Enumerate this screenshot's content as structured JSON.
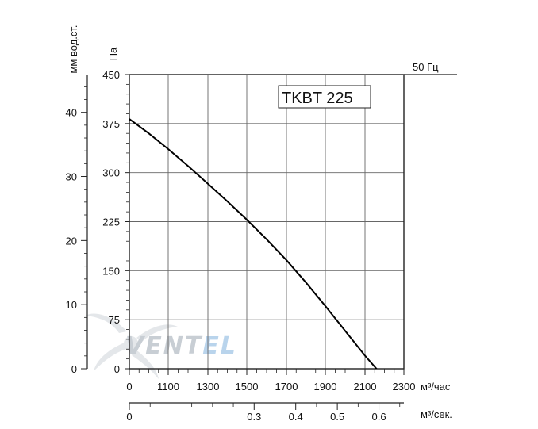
{
  "chart_data": {
    "type": "line",
    "model_label": "TKBT 225",
    "frequency_label": "50 Гц",
    "y_primary": {
      "label": "Па",
      "range": [
        0,
        450
      ],
      "ticks": [
        0,
        75,
        150,
        225,
        300,
        375,
        450
      ],
      "tick_labels": [
        "0",
        "75",
        "150",
        "225",
        "300",
        "375",
        "450"
      ]
    },
    "y_secondary": {
      "label": "мм вод.ст.",
      "range": [
        0,
        45.9
      ],
      "ticks": [
        0,
        10,
        20,
        30,
        40
      ],
      "tick_labels": [
        "0",
        "10",
        "20",
        "30",
        "40"
      ]
    },
    "x_primary": {
      "label": "м³/час",
      "tick_labels": [
        "0",
        "1100",
        "1300",
        "1500",
        "1700",
        "1900",
        "2100",
        "2300"
      ]
    },
    "x_secondary": {
      "label": "м³/сек.",
      "range": [
        0,
        0.66
      ],
      "ticks": [
        0,
        0.3,
        0.4,
        0.5,
        0.6
      ],
      "tick_labels": [
        "0",
        "0.3",
        "0.4",
        "0.5",
        "0.6"
      ]
    },
    "series": [
      {
        "x_m3h": [
          900,
          1000,
          1100,
          1200,
          1300,
          1400,
          1500,
          1600,
          1700,
          1800,
          1900,
          2000,
          2100,
          2200,
          2250
        ],
        "y_pa": [
          382,
          360,
          336,
          310,
          283,
          256,
          228,
          198,
          166,
          132,
          96,
          58,
          20,
          -14,
          -30
        ],
        "color": "#000000"
      }
    ],
    "grid": true,
    "watermark": {
      "text_main": "VENT",
      "text_accent": "EL",
      "main_color": "#c8ced4",
      "accent_color": "#b9d4ec"
    }
  }
}
